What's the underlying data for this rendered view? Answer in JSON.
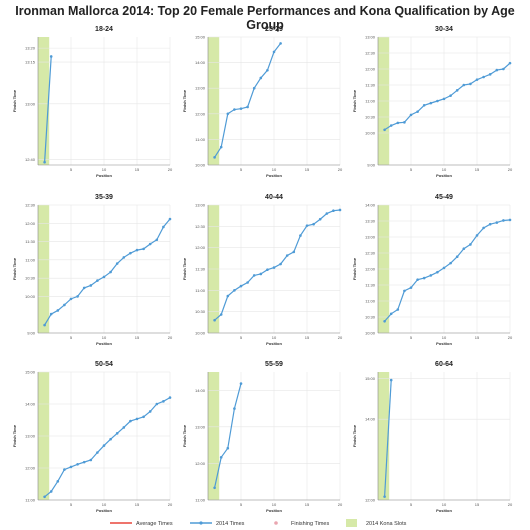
{
  "title": "Ironman Mallorca 2014: Top 20 Female Performances and Kona Qualification by Age Group",
  "colors": {
    "series": "#4f9bd6",
    "average": "#e8473b",
    "finishing": "#e9a6b0",
    "kona": "#d6e9a8",
    "grid": "#e6e6e6",
    "axis": "#888888"
  },
  "legend": [
    {
      "label": "Average Times",
      "kind": "average"
    },
    {
      "label": "2014 Times",
      "kind": "series"
    },
    {
      "label": "Finishing Times",
      "kind": "finishing"
    },
    {
      "label": "2014 Kona Slots",
      "kind": "kona"
    }
  ],
  "chart_data": [
    {
      "type": "line",
      "title": "18-24",
      "xlabel": "Position",
      "ylabel": "Finish Time",
      "xlim": [
        0,
        20
      ],
      "xticks": [
        5,
        10,
        15,
        20
      ],
      "kona_slots": 1,
      "yticks": [
        "12:40",
        "13:00",
        "13:15",
        "13:20"
      ],
      "ytick_min": [
        760,
        780,
        795,
        800
      ],
      "ylim": [
        758,
        804
      ],
      "series": [
        {
          "name": "2014 Times",
          "x": [
            1,
            2
          ],
          "y": [
            759,
            797
          ]
        }
      ]
    },
    {
      "type": "line",
      "title": "25-29",
      "xlabel": "Position",
      "ylabel": "Finish Time",
      "xlim": [
        0,
        20
      ],
      "xticks": [
        5,
        10,
        15,
        20
      ],
      "kona_slots": 1,
      "yticks": [
        "10:00",
        "11:00",
        "12:00",
        "13:00",
        "14:00",
        "15:00"
      ],
      "ytick_min": [
        600,
        660,
        720,
        780,
        840,
        900
      ],
      "ylim": [
        600,
        900
      ],
      "series": [
        {
          "name": "2014 Times",
          "x": [
            1,
            2,
            3,
            4,
            5,
            6,
            7,
            8,
            9,
            10,
            11
          ],
          "y": [
            618,
            642,
            720,
            730,
            732,
            736,
            780,
            804,
            822,
            865,
            885
          ]
        }
      ]
    },
    {
      "type": "line",
      "title": "30-34",
      "xlabel": "Position",
      "ylabel": "Finish Time",
      "xlim": [
        0,
        20
      ],
      "xticks": [
        5,
        10,
        15,
        20
      ],
      "kona_slots": 1,
      "yticks": [
        "9:00",
        "10:00",
        "10:30",
        "11:00",
        "11:30",
        "12:00",
        "12:30",
        "13:00"
      ],
      "ytick_min": [
        540,
        600,
        630,
        660,
        690,
        720,
        750,
        780
      ],
      "ylim": [
        540,
        780
      ],
      "series": [
        {
          "name": "2014 Times",
          "x": [
            1,
            2,
            3,
            4,
            5,
            6,
            7,
            8,
            9,
            10,
            11,
            12,
            13,
            14,
            15,
            16,
            17,
            18,
            19,
            20
          ],
          "y": [
            606,
            614,
            619,
            620,
            634,
            640,
            652,
            656,
            660,
            664,
            670,
            680,
            690,
            692,
            700,
            705,
            710,
            718,
            720,
            731
          ]
        }
      ]
    },
    {
      "type": "line",
      "title": "35-39",
      "xlabel": "Position",
      "ylabel": "Finish Time",
      "xlim": [
        0,
        20
      ],
      "xticks": [
        5,
        10,
        15,
        20
      ],
      "kona_slots": 1,
      "yticks": [
        "9:00",
        "10:00",
        "10:30",
        "11:00",
        "11:30",
        "12:00",
        "12:30"
      ],
      "ytick_min": [
        540,
        600,
        630,
        660,
        690,
        720,
        750
      ],
      "ylim": [
        540,
        750
      ],
      "series": [
        {
          "name": "2014 Times",
          "x": [
            1,
            2,
            3,
            4,
            5,
            6,
            7,
            8,
            9,
            10,
            11,
            12,
            13,
            14,
            15,
            16,
            17,
            18,
            19,
            20
          ],
          "y": [
            553,
            571,
            577,
            586,
            596,
            600,
            614,
            618,
            626,
            632,
            640,
            654,
            664,
            671,
            676,
            678,
            686,
            693,
            714,
            727
          ]
        }
      ]
    },
    {
      "type": "line",
      "title": "40-44",
      "xlabel": "Position",
      "ylabel": "Finish Time",
      "xlim": [
        0,
        20
      ],
      "xticks": [
        5,
        10,
        15,
        20
      ],
      "kona_slots": 1,
      "yticks": [
        "10:00",
        "10:30",
        "11:00",
        "11:30",
        "12:00",
        "12:30",
        "13:00"
      ],
      "ytick_min": [
        600,
        630,
        660,
        690,
        720,
        750,
        780
      ],
      "ylim": [
        600,
        780
      ],
      "series": [
        {
          "name": "2014 Times",
          "x": [
            1,
            2,
            3,
            4,
            5,
            6,
            7,
            8,
            9,
            10,
            11,
            12,
            13,
            14,
            15,
            16,
            17,
            18,
            19,
            20
          ],
          "y": [
            618,
            626,
            652,
            660,
            666,
            671,
            681,
            683,
            689,
            692,
            697,
            709,
            714,
            737,
            751,
            753,
            760,
            768,
            772,
            773
          ]
        }
      ]
    },
    {
      "type": "line",
      "title": "45-49",
      "xlabel": "Position",
      "ylabel": "Finish Time",
      "xlim": [
        0,
        20
      ],
      "xticks": [
        5,
        10,
        15,
        20
      ],
      "kona_slots": 1,
      "yticks": [
        "10:00",
        "10:30",
        "11:00",
        "11:30",
        "12:00",
        "12:30",
        "13:00",
        "13:30",
        "14:00"
      ],
      "ytick_min": [
        600,
        630,
        660,
        690,
        720,
        750,
        780,
        810,
        840
      ],
      "ylim": [
        600,
        840
      ],
      "series": [
        {
          "name": "2014 Times",
          "x": [
            1,
            2,
            3,
            4,
            5,
            6,
            7,
            8,
            9,
            10,
            11,
            12,
            13,
            14,
            15,
            16,
            17,
            18,
            19,
            20
          ],
          "y": [
            622,
            636,
            644,
            679,
            685,
            700,
            703,
            708,
            714,
            722,
            731,
            743,
            758,
            766,
            783,
            797,
            804,
            807,
            811,
            812
          ]
        }
      ]
    },
    {
      "type": "line",
      "title": "50-54",
      "xlabel": "Position",
      "ylabel": "Finish Time",
      "xlim": [
        0,
        20
      ],
      "xticks": [
        5,
        10,
        15,
        20
      ],
      "kona_slots": 1,
      "yticks": [
        "11:00",
        "12:00",
        "13:00",
        "14:00",
        "15:00"
      ],
      "ytick_min": [
        660,
        720,
        780,
        840,
        900
      ],
      "ylim": [
        660,
        900
      ],
      "series": [
        {
          "name": "2014 Times",
          "x": [
            1,
            2,
            3,
            4,
            5,
            6,
            7,
            8,
            9,
            10,
            11,
            12,
            13,
            14,
            15,
            16,
            17,
            18,
            19,
            20
          ],
          "y": [
            666,
            676,
            695,
            717,
            722,
            727,
            731,
            735,
            749,
            762,
            774,
            785,
            796,
            808,
            812,
            816,
            826,
            840,
            845,
            852
          ]
        }
      ]
    },
    {
      "type": "line",
      "title": "55-59",
      "xlabel": "Position",
      "ylabel": "Finish Time",
      "xlim": [
        0,
        20
      ],
      "xticks": [
        5,
        10,
        15,
        20
      ],
      "kona_slots": 1,
      "yticks": [
        "11:00",
        "12:00",
        "13:00",
        "14:00"
      ],
      "ytick_min": [
        660,
        720,
        780,
        840
      ],
      "ylim": [
        660,
        870
      ],
      "series": [
        {
          "name": "2014 Times",
          "x": [
            1,
            2,
            3,
            4,
            5
          ],
          "y": [
            680,
            730,
            745,
            810,
            851
          ]
        }
      ]
    },
    {
      "type": "line",
      "title": "60-64",
      "xlabel": "Position",
      "ylabel": "Finish Time",
      "xlim": [
        0,
        20
      ],
      "xticks": [
        5,
        10,
        15,
        20
      ],
      "kona_slots": 1,
      "yticks": [
        "12:00",
        "14:00",
        "15:00"
      ],
      "ytick_min": [
        720,
        840,
        900
      ],
      "ylim": [
        720,
        910
      ],
      "series": [
        {
          "name": "2014 Times",
          "x": [
            1,
            2
          ],
          "y": [
            725,
            898
          ]
        }
      ]
    }
  ]
}
